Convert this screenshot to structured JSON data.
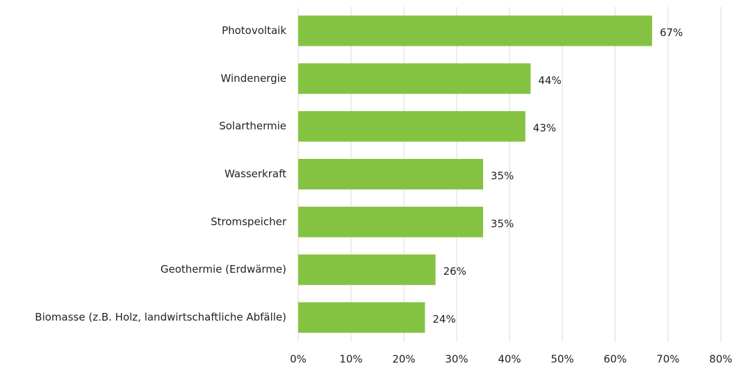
{
  "chart_data": {
    "type": "bar",
    "orientation": "horizontal",
    "categories": [
      "Photovoltaik",
      "Windenergie",
      "Solarthermie",
      "Wasserkraft",
      "Stromspeicher",
      "Geothermie (Erdwärme)",
      "Biomasse (z.B. Holz, landwirtschaftliche Abfälle)"
    ],
    "values": [
      67,
      44,
      43,
      35,
      35,
      26,
      24
    ],
    "value_labels": [
      "67%",
      "44%",
      "43%",
      "35%",
      "35%",
      "26%",
      "24%"
    ],
    "color": "#84c341",
    "xlim": [
      0,
      80
    ],
    "xticks": [
      {
        "value": 0,
        "label": "0%"
      },
      {
        "value": 10,
        "label": "10%"
      },
      {
        "value": 20,
        "label": "20%"
      },
      {
        "value": 30,
        "label": "30%"
      },
      {
        "value": 40,
        "label": "40%"
      },
      {
        "value": 50,
        "label": "50%"
      },
      {
        "value": 60,
        "label": "60%"
      },
      {
        "value": 70,
        "label": "70%"
      },
      {
        "value": 80,
        "label": "80%"
      }
    ],
    "grid": true
  }
}
